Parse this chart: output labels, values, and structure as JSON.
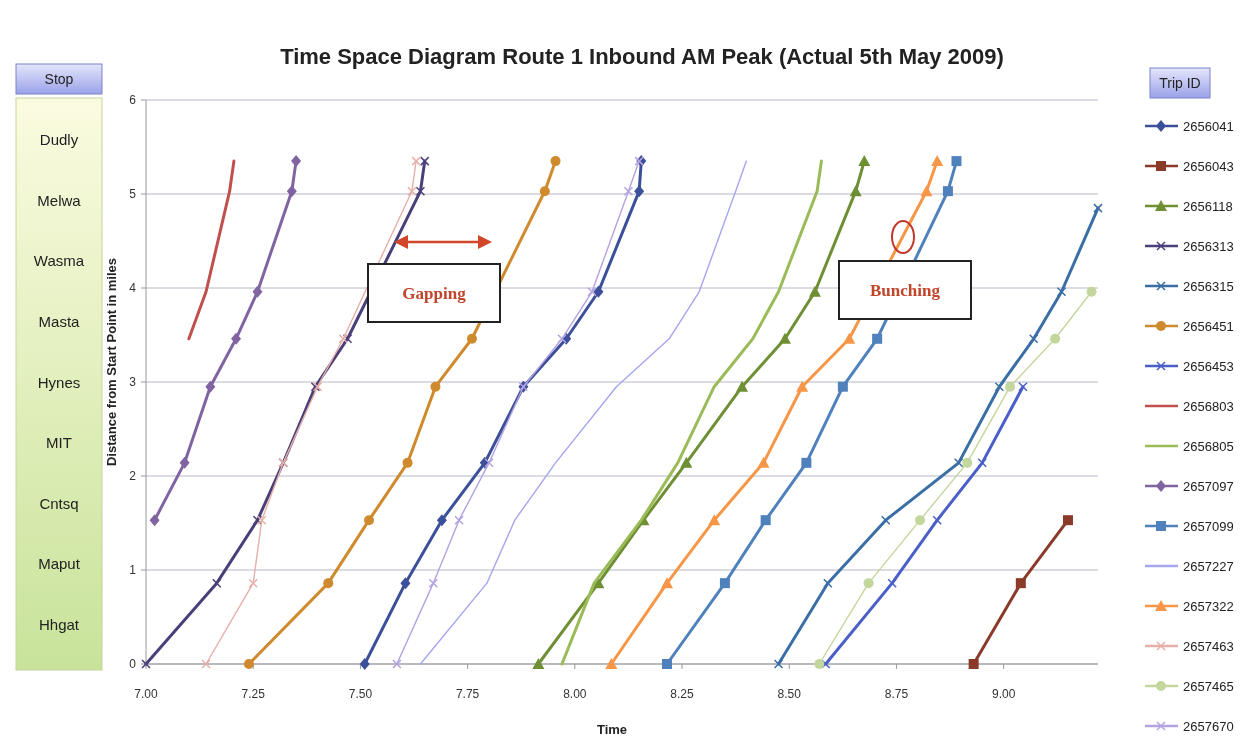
{
  "chart_data": {
    "type": "line",
    "title": "Time Space Diagram Route 1 Inbound AM Peak (Actual 5th May 2009)",
    "xlabel": "Time",
    "ylabel": "Distance from Start Point in miles",
    "legend_title": "Trip ID",
    "legend": "right",
    "grid": "y",
    "line_style": "solid",
    "xlim": [
      7,
      9.22
    ],
    "xticks": [
      {
        "value": 7,
        "label": "7.00"
      },
      {
        "value": 7.25,
        "label": "7.25"
      },
      {
        "value": 7.5,
        "label": "7.50"
      },
      {
        "value": 7.75,
        "label": "7.75"
      },
      {
        "value": 8,
        "label": "8.00"
      },
      {
        "value": 8.25,
        "label": "8.25"
      },
      {
        "value": 8.5,
        "label": "8.50"
      },
      {
        "value": 8.75,
        "label": "8.75"
      },
      {
        "value": 9,
        "label": "9.00"
      }
    ],
    "ylim": [
      0,
      6
    ],
    "yticks": [
      0,
      1,
      2,
      3,
      4,
      5,
      6
    ],
    "annotations": [
      "Stop",
      "Dudly",
      "Melwa",
      "Wasma",
      "Masta",
      "Hynes",
      "MIT",
      "Cntsq",
      "Maput",
      "Hhgat",
      "Gapping",
      "Bunching"
    ],
    "series": [
      {
        "name": "2656041",
        "color": "#3c4f9a",
        "marker": "diamond",
        "x": [
          7.51,
          7.605,
          7.69,
          7.79,
          7.88,
          7.98,
          8.055,
          8.15,
          8.155
        ],
        "values": [
          0,
          0.86,
          1.53,
          2.14,
          2.95,
          3.46,
          3.96,
          5.03,
          5.35
        ]
      },
      {
        "name": "2656043",
        "color": "#8b3a2a",
        "marker": "square",
        "x": [
          8.93,
          9.04,
          9.15
        ],
        "values": [
          0,
          0.86,
          1.53
        ]
      },
      {
        "name": "2656118",
        "color": "#6f8f35",
        "marker": "triangle",
        "x": [
          7.915,
          8.055,
          8.16,
          8.26,
          8.39,
          8.49,
          8.56,
          8.655,
          8.675
        ],
        "values": [
          0,
          0.86,
          1.53,
          2.14,
          2.95,
          3.46,
          3.96,
          5.03,
          5.35
        ]
      },
      {
        "name": "2656313",
        "color": "#4b3f7a",
        "marker": "cross",
        "x": [
          7,
          7.165,
          7.26,
          7.32,
          7.395,
          7.47,
          7.56,
          7.64,
          7.65
        ],
        "values": [
          0,
          0.86,
          1.53,
          2.14,
          2.95,
          3.46,
          null,
          5.03,
          5.35
        ]
      },
      {
        "name": "2656315",
        "color": "#3a6ea5",
        "marker": "cross",
        "x": [
          8.475,
          8.59,
          8.725,
          8.895,
          8.99,
          9.07,
          9.135,
          9.22
        ],
        "values": [
          0,
          0.86,
          1.53,
          2.14,
          2.95,
          3.46,
          3.96,
          4.85
        ]
      },
      {
        "name": "2656451",
        "color": "#d08a2e",
        "marker": "circle",
        "x": [
          7.24,
          7.425,
          7.52,
          7.61,
          7.675,
          7.76,
          7.85,
          7.93,
          7.955
        ],
        "values": [
          0,
          0.86,
          1.53,
          2.14,
          2.95,
          3.46,
          null,
          5.03,
          5.35
        ]
      },
      {
        "name": "2656453",
        "color": "#4a5fc8",
        "marker": "cross",
        "x": [
          8.585,
          8.74,
          8.845,
          8.95,
          9.045
        ],
        "values": [
          0,
          0.86,
          1.53,
          2.14,
          2.95
        ]
      },
      {
        "name": "2656803",
        "color": "#c0504d",
        "marker": "none",
        "x": [
          7.1,
          7.14,
          7.195,
          7.205
        ],
        "values": [
          3.46,
          3.96,
          5.03,
          5.35
        ]
      },
      {
        "name": "2656805",
        "color": "#9bbb59",
        "marker": "none",
        "x": [
          7.97,
          8.045,
          8.155,
          8.24,
          8.325,
          8.415,
          8.475,
          8.565,
          8.575
        ],
        "values": [
          0,
          0.86,
          1.53,
          2.14,
          2.95,
          3.46,
          3.96,
          5.03,
          5.35
        ]
      },
      {
        "name": "2657097",
        "color": "#8064a2",
        "marker": "diamond",
        "x": [
          7.02,
          7.09,
          7.15,
          7.21,
          7.26,
          7.34,
          7.35
        ],
        "values": [
          1.53,
          2.14,
          2.95,
          3.46,
          3.96,
          5.03,
          5.35
        ]
      },
      {
        "name": "2657099",
        "color": "#4f81bd",
        "marker": "square",
        "x": [
          8.215,
          8.35,
          8.445,
          8.54,
          8.625,
          8.705,
          8.765,
          8.87,
          8.89
        ],
        "values": [
          0,
          0.86,
          1.53,
          2.14,
          2.95,
          3.46,
          null,
          5.03,
          5.35
        ]
      },
      {
        "name": "2657227",
        "color": "#a5a5f0",
        "marker": "none",
        "x": [
          7.64,
          7.795,
          7.86,
          7.955,
          8.097,
          8.22,
          8.29,
          8.375,
          8.4
        ],
        "values": [
          0,
          0.86,
          1.53,
          2.14,
          2.95,
          3.46,
          3.96,
          5.03,
          5.35
        ]
      },
      {
        "name": "2657322",
        "color": "#f79646",
        "marker": "triangle",
        "x": [
          8.085,
          8.215,
          8.325,
          8.44,
          8.53,
          8.64,
          8.7,
          8.82,
          8.845
        ],
        "values": [
          0,
          0.86,
          1.53,
          2.14,
          2.95,
          3.46,
          null,
          5.03,
          5.35
        ]
      },
      {
        "name": "2657463",
        "color": "#e6b0a8",
        "marker": "cross",
        "x": [
          7.14,
          7.25,
          7.27,
          7.32,
          7.4,
          7.46,
          7.54,
          7.62,
          7.63
        ],
        "values": [
          0,
          0.86,
          1.53,
          2.14,
          2.95,
          3.46,
          null,
          5.03,
          5.35
        ]
      },
      {
        "name": "2657465",
        "color": "#c3d69b",
        "marker": "circle",
        "x": [
          8.57,
          8.685,
          8.805,
          8.915,
          9.015,
          9.12,
          9.205
        ],
        "values": [
          0,
          0.86,
          1.53,
          2.14,
          2.95,
          3.46,
          3.96
        ]
      },
      {
        "name": "2657670",
        "color": "#b3a2e0",
        "marker": "cross",
        "x": [
          7.585,
          7.67,
          7.73,
          7.8,
          7.88,
          7.97,
          8.04,
          8.125,
          8.15
        ],
        "values": [
          0,
          0.86,
          1.53,
          2.14,
          2.95,
          3.46,
          3.96,
          5.03,
          5.35
        ]
      }
    ]
  }
}
